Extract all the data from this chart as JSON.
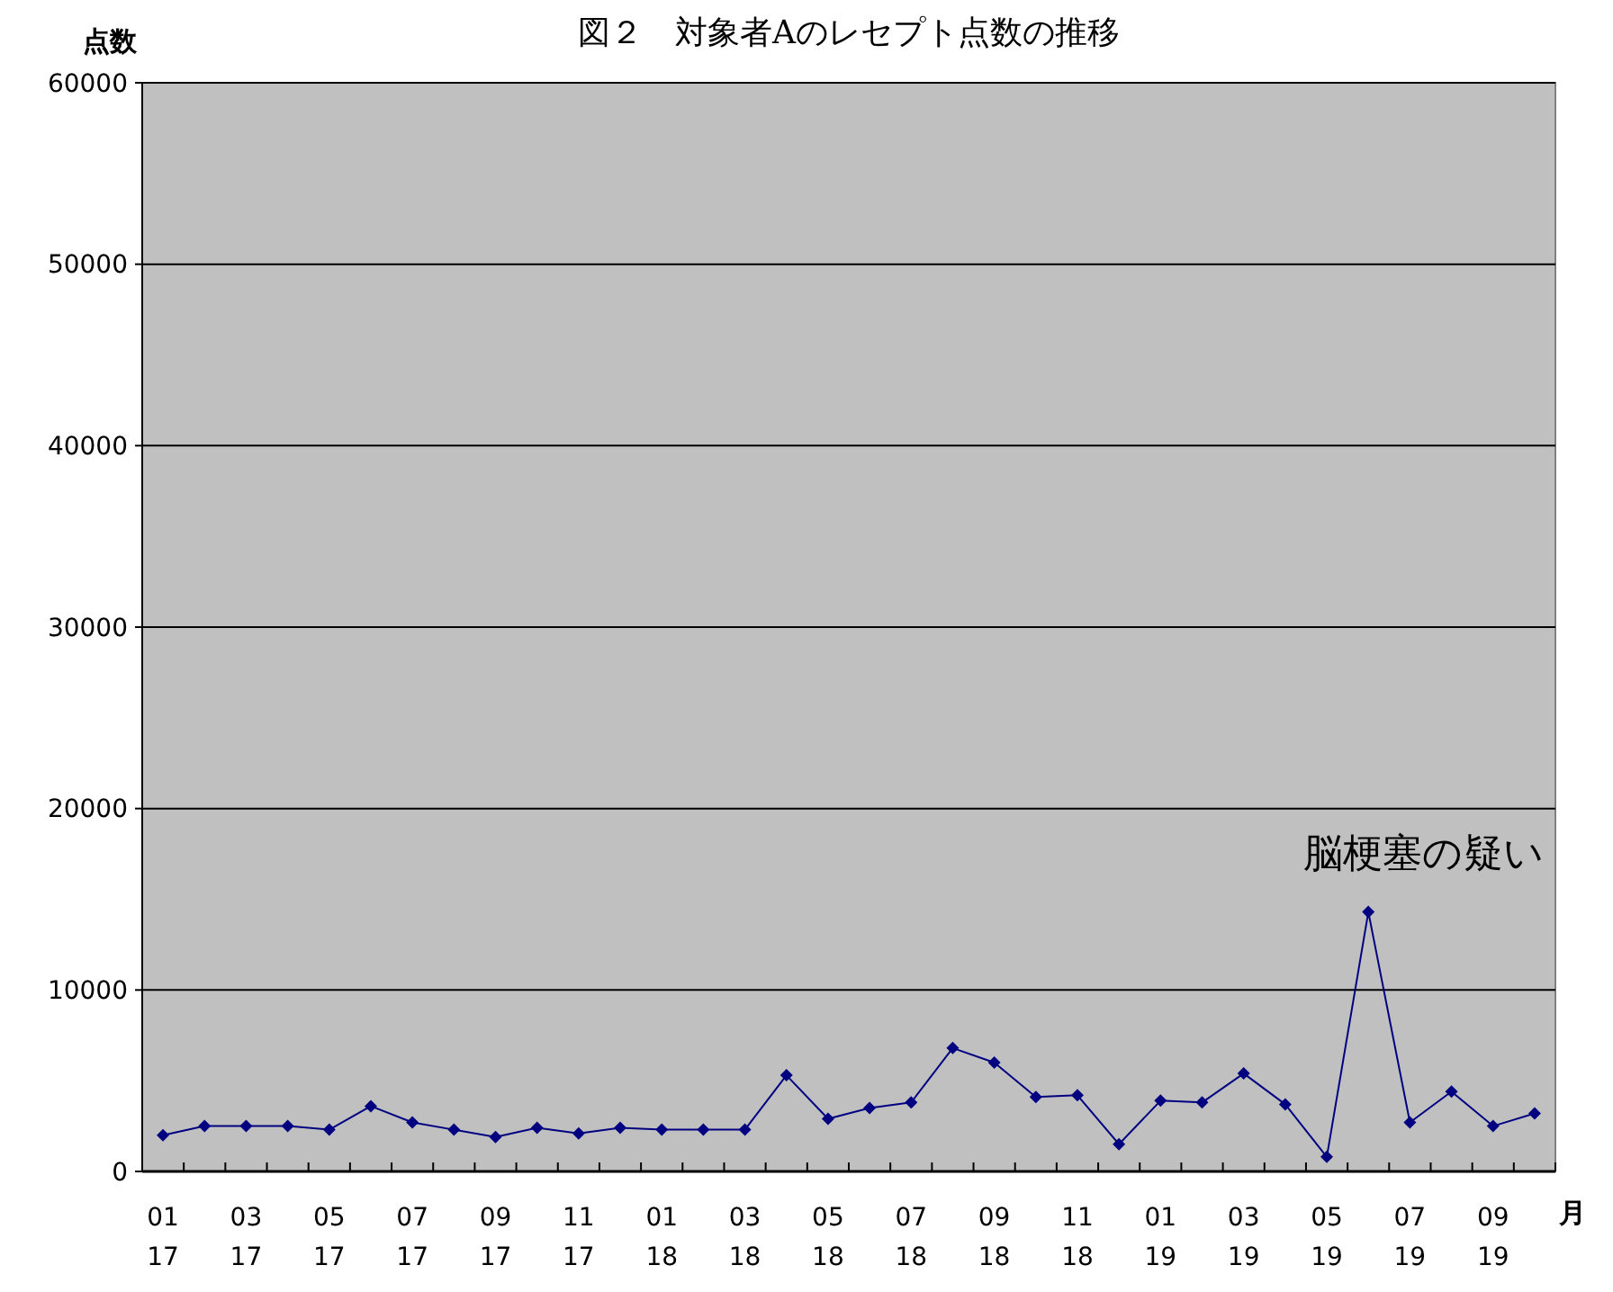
{
  "chart_data": {
    "type": "line",
    "title": "図２　対象者Aのレセプト点数の推移",
    "ylabel": "点数",
    "xlabel": "月",
    "categories": [
      "01\n17",
      null,
      "03\n17",
      null,
      "05\n17",
      null,
      "07\n17",
      null,
      "09\n17",
      null,
      "11\n17",
      null,
      "01\n18",
      null,
      "03\n18",
      null,
      "05\n18",
      null,
      "07\n18",
      null,
      "09\n18",
      null,
      "11\n18",
      null,
      "01\n19",
      null,
      "03\n19",
      null,
      "05\n19",
      null,
      "07\n19",
      null,
      "09\n19",
      null
    ],
    "series": [
      {
        "color": "#000080",
        "values": [
          2000,
          2500,
          2500,
          2500,
          2300,
          3600,
          2700,
          2300,
          1900,
          2400,
          2100,
          2400,
          2300,
          2300,
          2300,
          5300,
          2900,
          3500,
          3800,
          6800,
          6000,
          4100,
          4200,
          1500,
          3900,
          3800,
          5400,
          3700,
          800,
          14300,
          2700,
          4400,
          2500,
          3200
        ]
      }
    ],
    "ylim": [
      0,
      60000
    ],
    "yticks": [
      0,
      10000,
      20000,
      30000,
      40000,
      50000,
      60000
    ],
    "grid": "y",
    "marker": "diamond",
    "line_style": "solid",
    "annotations": [
      "脳梗塞の疑い"
    ]
  }
}
